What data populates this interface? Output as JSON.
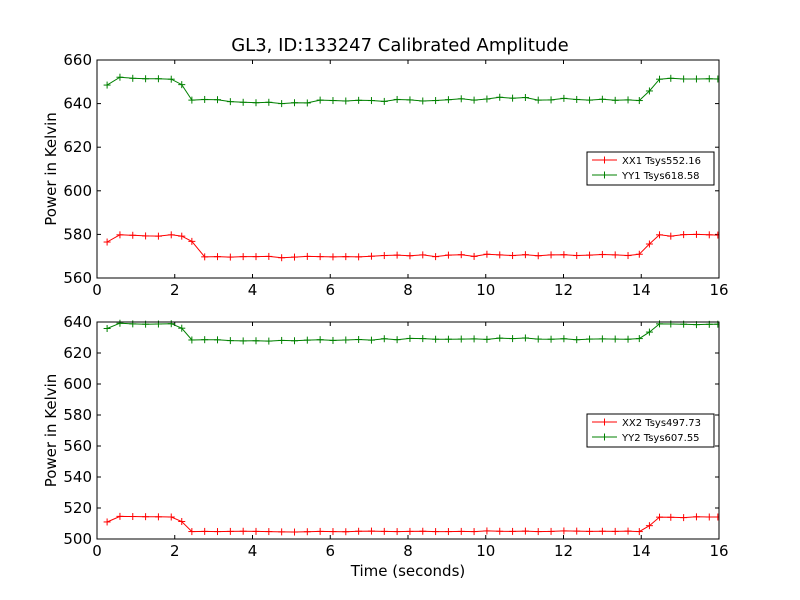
{
  "figure": {
    "title": "GL3, ID:133247 Calibrated Amplitude",
    "xlabel": "Time (seconds)"
  },
  "chart_data": [
    {
      "type": "line",
      "ylabel": "Power in Kelvin",
      "xlim": [
        0,
        16
      ],
      "ylim": [
        560,
        660
      ],
      "xticks": [
        0,
        2,
        4,
        6,
        8,
        10,
        12,
        14,
        16
      ],
      "yticks": [
        560,
        580,
        600,
        620,
        640,
        660
      ],
      "grid": false,
      "legend_position": "right",
      "x": [
        0.26,
        0.59,
        0.92,
        1.25,
        1.58,
        1.91,
        2.18,
        2.44,
        2.77,
        3.1,
        3.43,
        3.76,
        4.09,
        4.42,
        4.75,
        5.08,
        5.41,
        5.74,
        6.07,
        6.4,
        6.73,
        7.06,
        7.39,
        7.72,
        8.05,
        8.38,
        8.71,
        9.04,
        9.37,
        9.7,
        10.03,
        10.36,
        10.69,
        11.02,
        11.35,
        11.68,
        12.01,
        12.34,
        12.67,
        13.0,
        13.33,
        13.66,
        13.95,
        14.21,
        14.47,
        14.76,
        15.09,
        15.42,
        15.75,
        15.97
      ],
      "series": [
        {
          "name": "XX1 Tsys552.16",
          "color": "#ff0000",
          "values": [
            576.5,
            579.8,
            579.6,
            579.3,
            579.2,
            579.8,
            579.2,
            576.8,
            569.7,
            569.8,
            569.6,
            569.8,
            569.8,
            569.9,
            569.3,
            569.6,
            569.9,
            569.8,
            569.7,
            569.8,
            569.7,
            570.0,
            570.3,
            570.5,
            570.2,
            570.6,
            569.8,
            570.5,
            570.7,
            569.9,
            570.9,
            570.6,
            570.3,
            570.7,
            570.2,
            570.6,
            570.7,
            570.3,
            570.5,
            570.8,
            570.6,
            570.3,
            570.9,
            575.6,
            579.8,
            579.2,
            579.9,
            580.0,
            579.8,
            579.7
          ]
        },
        {
          "name": "YY1 Tsys618.58",
          "color": "#008000",
          "values": [
            648.5,
            652.1,
            651.6,
            651.4,
            651.4,
            651.2,
            648.7,
            641.6,
            641.9,
            641.8,
            640.9,
            640.6,
            640.4,
            640.6,
            640.0,
            640.4,
            640.3,
            641.6,
            641.4,
            641.2,
            641.5,
            641.4,
            641.0,
            641.9,
            641.7,
            641.2,
            641.4,
            641.8,
            642.2,
            641.6,
            642.1,
            642.9,
            642.5,
            642.8,
            641.6,
            641.7,
            642.4,
            641.9,
            641.6,
            642.0,
            641.5,
            641.7,
            641.4,
            645.8,
            651.2,
            651.6,
            651.3,
            651.3,
            651.4,
            651.3
          ]
        }
      ]
    },
    {
      "type": "line",
      "ylabel": "Power in Kelvin",
      "xlim": [
        0,
        16
      ],
      "ylim": [
        500,
        640
      ],
      "xticks": [
        0,
        2,
        4,
        6,
        8,
        10,
        12,
        14,
        16
      ],
      "yticks": [
        500,
        520,
        540,
        560,
        580,
        600,
        620,
        640
      ],
      "grid": false,
      "legend_position": "right",
      "x": [
        0.26,
        0.59,
        0.92,
        1.25,
        1.58,
        1.91,
        2.18,
        2.44,
        2.77,
        3.1,
        3.43,
        3.76,
        4.09,
        4.42,
        4.75,
        5.08,
        5.41,
        5.74,
        6.07,
        6.4,
        6.73,
        7.06,
        7.39,
        7.72,
        8.05,
        8.38,
        8.71,
        9.04,
        9.37,
        9.7,
        10.03,
        10.36,
        10.69,
        11.02,
        11.35,
        11.68,
        12.01,
        12.34,
        12.67,
        13.0,
        13.33,
        13.66,
        13.95,
        14.21,
        14.47,
        14.76,
        15.09,
        15.42,
        15.75,
        15.97
      ],
      "series": [
        {
          "name": "XX2 Tsys497.73",
          "color": "#ff0000",
          "values": [
            511.0,
            514.6,
            514.5,
            514.4,
            514.3,
            514.2,
            511.3,
            504.8,
            504.9,
            504.8,
            504.9,
            505.0,
            504.9,
            504.8,
            504.6,
            504.5,
            504.7,
            504.9,
            504.8,
            504.7,
            505.0,
            505.1,
            504.9,
            504.8,
            504.9,
            505.0,
            504.8,
            504.8,
            504.9,
            504.8,
            505.2,
            505.0,
            504.9,
            505.1,
            504.8,
            504.9,
            505.2,
            505.1,
            504.9,
            505.0,
            504.9,
            505.1,
            504.8,
            508.6,
            514.1,
            514.0,
            513.8,
            514.3,
            514.2,
            514.2
          ]
        },
        {
          "name": "YY2 Tsys607.55",
          "color": "#008000",
          "values": [
            635.8,
            639.2,
            638.8,
            638.6,
            638.7,
            638.9,
            636.0,
            628.4,
            628.6,
            628.5,
            628.0,
            627.8,
            627.9,
            627.7,
            628.1,
            627.9,
            628.3,
            628.6,
            628.1,
            628.4,
            628.7,
            628.3,
            629.2,
            628.6,
            629.4,
            629.3,
            628.9,
            628.9,
            629.0,
            629.1,
            628.8,
            629.6,
            629.3,
            629.7,
            629.0,
            628.9,
            629.2,
            628.6,
            629.0,
            629.1,
            629.0,
            628.9,
            629.3,
            633.5,
            638.8,
            638.7,
            638.6,
            638.3,
            638.5,
            638.6
          ]
        }
      ]
    }
  ]
}
